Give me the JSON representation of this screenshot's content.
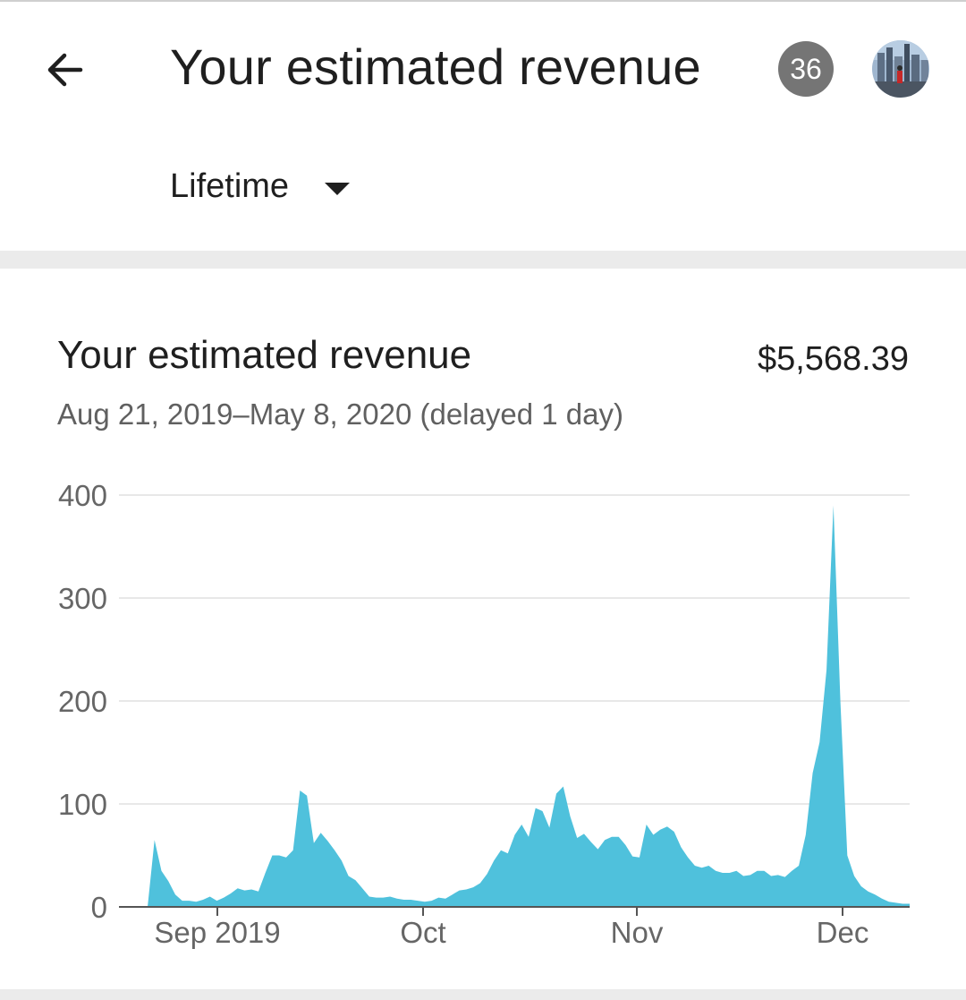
{
  "header": {
    "title": "Your estimated revenue",
    "notification_count": "36",
    "period_label": "Lifetime"
  },
  "card": {
    "title": "Your estimated revenue",
    "amount": "$5,568.39",
    "date_range": "Aug 21, 2019–May 8, 2020 (delayed 1 day)"
  },
  "icons": {
    "back": "arrow-left-icon",
    "dropdown": "caret-down-icon",
    "avatar": "account-avatar"
  },
  "colors": {
    "area_fill": "#4fc1dc",
    "gridline": "#e0e0e0",
    "axis": "#666666"
  },
  "chart_data": {
    "type": "area",
    "title": "",
    "xlabel": "",
    "ylabel": "",
    "ylim": [
      0,
      400
    ],
    "y_ticks": [
      0,
      100,
      200,
      300,
      400
    ],
    "x_tick_labels": [
      "Sep 2019",
      "Oct",
      "Nov",
      "Dec"
    ],
    "grid": true,
    "series": [
      {
        "values": [
          0,
          65,
          35,
          25,
          12,
          6,
          6,
          5,
          7,
          10,
          6,
          9,
          13,
          18,
          16,
          17,
          15,
          33,
          50,
          50,
          48,
          55,
          113,
          108,
          62,
          72,
          64,
          55,
          45,
          30,
          26,
          18,
          10,
          9,
          9,
          10,
          8,
          7,
          7,
          6,
          5,
          6,
          9,
          8,
          12,
          16,
          17,
          19,
          23,
          32,
          45,
          55,
          52,
          70,
          80,
          68,
          96,
          93,
          77,
          110,
          117,
          88,
          67,
          71,
          63,
          56,
          65,
          68,
          68,
          60,
          49,
          48,
          80,
          70,
          75,
          78,
          73,
          58,
          48,
          40,
          38,
          40,
          35,
          33,
          33,
          35,
          30,
          31,
          35,
          35,
          30,
          31,
          29,
          35,
          40,
          70,
          130,
          160,
          230,
          390,
          200,
          50,
          30,
          20,
          15,
          12,
          8,
          5,
          4,
          3,
          3
        ]
      }
    ]
  }
}
